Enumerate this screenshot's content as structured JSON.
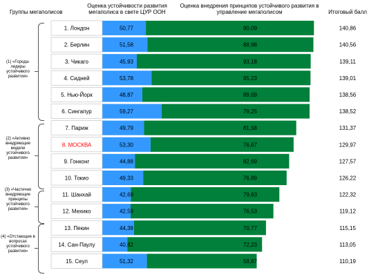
{
  "headers": {
    "groups": "Группы мегаполисов",
    "sustainability": "Оценка устойчивости развития мегаполиса в свете ЦУР ООН",
    "implementation": "Оценка внедрения принципов устойчивого развития в управление мегаполисом",
    "total": "Итоговый балл"
  },
  "groups": [
    {
      "label": "(1) «Города-лидеры устойчивого развития»"
    },
    {
      "label": "(2) «Активно внедряющие модели устойчивого развития»"
    },
    {
      "label": "(3) «Частично внедряющие принципы устойчивого развития»"
    },
    {
      "label": "(4) «Отстающие в вопросах устойчивого развития»"
    }
  ],
  "colors": {
    "sustainability": "#3399ff",
    "implementation": "#00803a",
    "highlight_text": "#ff0000"
  },
  "chart_data": {
    "type": "bar",
    "orientation": "horizontal",
    "stacked": true,
    "categories": [
      "1. Лондон",
      "2. Берлин",
      "3. Чикаго",
      "4. Сидней",
      "5. Нью-Йорк",
      "6. Сингапур",
      "7. Париж",
      "8. МОСКВА",
      "9. Гонконг",
      "10. Токио",
      "11. Шанхай",
      "12. Мехико",
      "13. Пекин",
      "14. Сан-Паулу",
      "15. Сеул"
    ],
    "highlight_category": "8. МОСКВА",
    "series": [
      {
        "name": "Оценка устойчивости развития мегаполиса в свете ЦУР ООН",
        "values": [
          50.77,
          51.58,
          45.93,
          53.78,
          48.87,
          59.27,
          49.79,
          53.3,
          44.88,
          49.33,
          42.69,
          42.59,
          44.38,
          40.82,
          51.32
        ],
        "labels": [
          "50,77",
          "51,58",
          "45,93",
          "53,78",
          "48,87",
          "59,27",
          "49,79",
          "53,30",
          "44,88",
          "49,33",
          "42,69",
          "42,59",
          "44,38",
          "40,82",
          "51,32"
        ]
      },
      {
        "name": "Оценка внедрения принципов устойчивого развития в управление мегаполисом",
        "values": [
          90.09,
          88.98,
          93.18,
          85.23,
          89.69,
          79.25,
          81.58,
          76.67,
          82.69,
          76.89,
          79.63,
          76.53,
          70.77,
          72.23,
          58.87
        ],
        "labels": [
          "90,09",
          "88,98",
          "93,18",
          "85,23",
          "89,69",
          "79,25",
          "81,58",
          "76,67",
          "82,69",
          "76,89",
          "79,63",
          "76,53",
          "70,77",
          "72,23",
          "58,87"
        ]
      }
    ],
    "totals": [
      "140,86",
      "140,56",
      "139,11",
      "139,01",
      "138,56",
      "138,52",
      "131,37",
      "129,97",
      "127,57",
      "126,22",
      "122,32",
      "119,12",
      "115,15",
      "113,05",
      "110,19"
    ],
    "group_sizes": [
      6,
      4,
      2,
      3
    ]
  }
}
